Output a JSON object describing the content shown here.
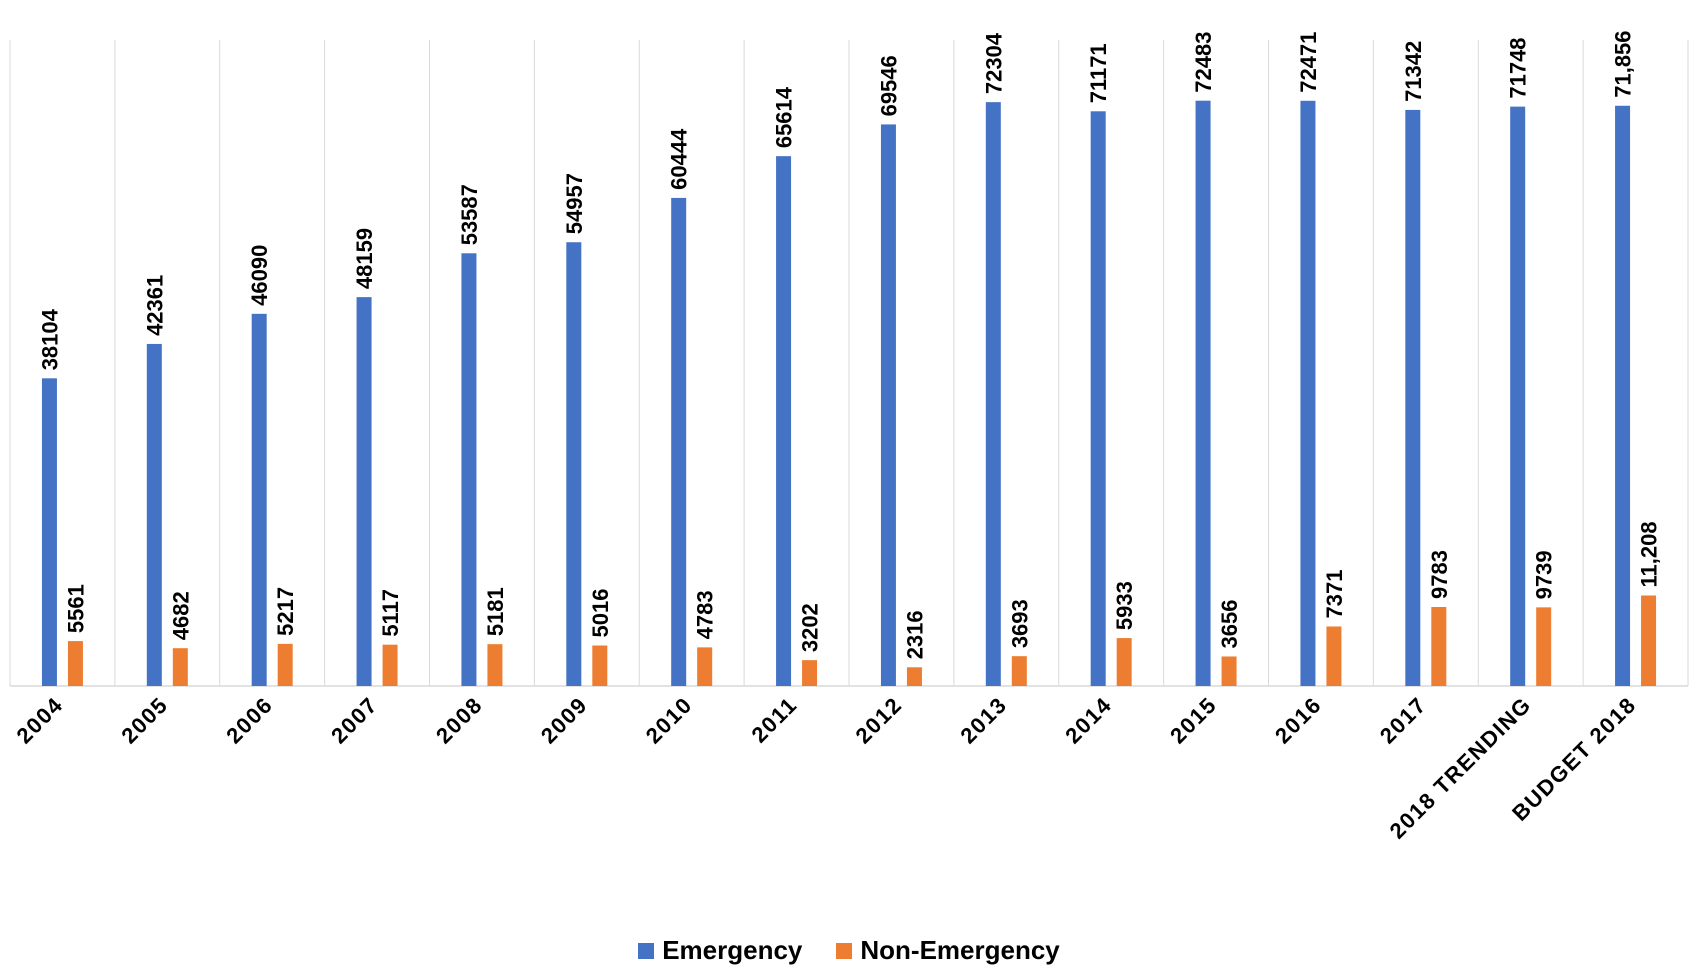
{
  "chart_data": {
    "type": "bar",
    "categories": [
      "2004",
      "2005",
      "2006",
      "2007",
      "2008",
      "2009",
      "2010",
      "2011",
      "2012",
      "2013",
      "2014",
      "2015",
      "2016",
      "2017",
      "2018 TRENDING",
      "BUDGET 2018"
    ],
    "series": [
      {
        "name": "Emergency",
        "color": "#4472C4",
        "values": [
          38104,
          42361,
          46090,
          48159,
          53587,
          54957,
          60444,
          65614,
          69546,
          72304,
          71171,
          72483,
          72471,
          71342,
          71748,
          71856
        ],
        "labels": [
          "38104",
          "42361",
          "46090",
          "48159",
          "53587",
          "54957",
          "60444",
          "65614",
          "69546",
          "72304",
          "71171",
          "72483",
          "72471",
          "71342",
          "71748",
          "71,856"
        ]
      },
      {
        "name": "Non-Emergency",
        "color": "#ED7D31",
        "values": [
          5561,
          4682,
          5217,
          5117,
          5181,
          5016,
          4783,
          3202,
          2316,
          3693,
          5933,
          3656,
          7371,
          9783,
          9739,
          11208
        ],
        "labels": [
          "5561",
          "4682",
          "5217",
          "5117",
          "5181",
          "5016",
          "4783",
          "3202",
          "2316",
          "3693",
          "5933",
          "3656",
          "7371",
          "9783",
          "9739",
          "11,208"
        ]
      }
    ],
    "title": "",
    "xlabel": "",
    "ylabel": "",
    "ylim": [
      0,
      80000
    ],
    "grid": "vertical category separators",
    "legend_position": "bottom"
  }
}
